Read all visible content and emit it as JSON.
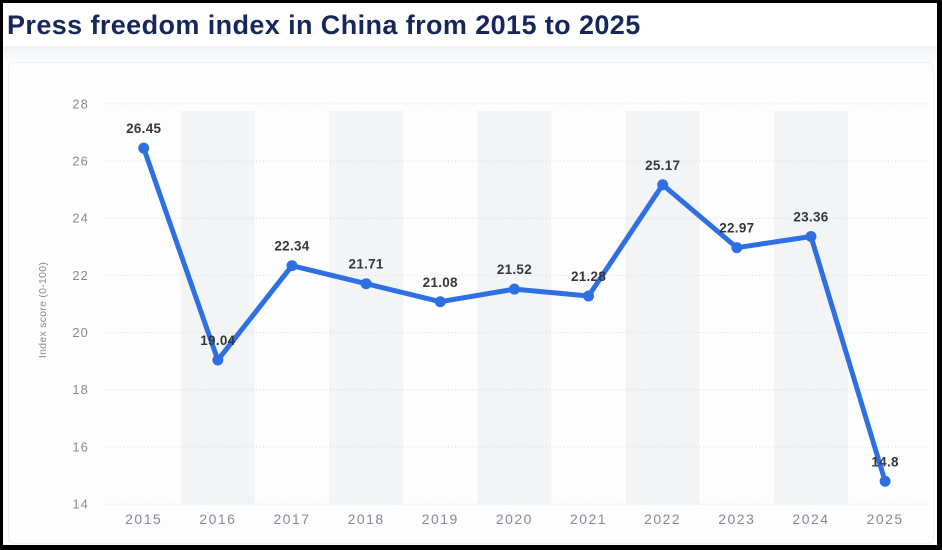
{
  "page": {
    "title": "Press freedom index in China from 2015 to 2025"
  },
  "chart_data": {
    "type": "line",
    "title": "Press freedom index in China from 2015 to 2025",
    "categories": [
      "2015",
      "2016",
      "2017",
      "2018",
      "2019",
      "2020",
      "2021",
      "2022",
      "2023",
      "2024",
      "2025"
    ],
    "values": [
      26.45,
      19.04,
      22.34,
      21.71,
      21.08,
      21.52,
      21.28,
      25.17,
      22.97,
      23.36,
      14.8
    ],
    "data_labels": [
      "26.45",
      "19.04",
      "22.34",
      "21.71",
      "21.08",
      "21.52",
      "21.28",
      "25.17",
      "22.97",
      "23.36",
      "14.8"
    ],
    "xlabel": "",
    "ylabel": "Index score (0-100)",
    "ylim": [
      14,
      28
    ],
    "yticks": [
      14,
      16,
      18,
      20,
      22,
      24,
      26,
      28
    ],
    "grid": "horizontal-dotted",
    "legend_position": "none",
    "banded_categories": [
      "2016",
      "2018",
      "2020",
      "2022",
      "2024"
    ],
    "colors": {
      "line": "#2e70e3",
      "marker": "#2e70e3",
      "band": "#f3f4f5",
      "grid": "#d8dadc",
      "axis_text": "#848b96",
      "data_label_text": "#35373b",
      "title_text": "#17265c"
    }
  }
}
